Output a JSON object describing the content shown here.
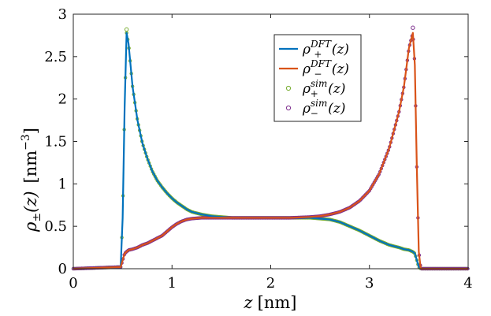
{
  "chart_data": {
    "type": "line",
    "title": "",
    "xlabel": {
      "symbol": "z",
      "unit": "[nm]"
    },
    "ylabel": {
      "symbol": "ρ",
      "sub": "±",
      "arg": "(z)",
      "unit": "[nm",
      "unit_exp": "−3",
      "unit_close": "]"
    },
    "xlim": [
      0,
      4
    ],
    "ylim": [
      0,
      3
    ],
    "xticks": [
      {
        "value": 0,
        "label": "0"
      },
      {
        "value": 1,
        "label": "1"
      },
      {
        "value": 2,
        "label": "2"
      },
      {
        "value": 3,
        "label": "3"
      },
      {
        "value": 4,
        "label": "4"
      }
    ],
    "yticks": [
      {
        "value": 0,
        "label": "0"
      },
      {
        "value": 0.5,
        "label": "0.5"
      },
      {
        "value": 1,
        "label": "1"
      },
      {
        "value": 1.5,
        "label": "1.5"
      },
      {
        "value": 2,
        "label": "2"
      },
      {
        "value": 2.5,
        "label": "2.5"
      },
      {
        "value": 3,
        "label": "3"
      }
    ],
    "grid": false,
    "legend_position": "top-right",
    "series": [
      {
        "id": "plus_dft",
        "kind": "line",
        "color": "#0072BD",
        "legend": {
          "base": "ρ",
          "sub": "+",
          "sup": "DFT",
          "arg": "(z)"
        },
        "x": [
          0,
          0.48,
          0.5,
          0.52,
          0.54,
          0.56,
          0.6,
          0.65,
          0.7,
          0.75,
          0.8,
          0.85,
          0.9,
          0.95,
          1.0,
          1.05,
          1.1,
          1.15,
          1.2,
          1.3,
          1.4,
          1.5,
          1.6,
          1.8,
          2.0,
          2.2,
          2.4,
          2.5,
          2.6,
          2.7,
          2.8,
          2.9,
          3.0,
          3.1,
          3.2,
          3.3,
          3.35,
          3.4,
          3.44,
          3.46,
          3.48,
          3.5,
          3.52,
          4.0
        ],
        "y": [
          0,
          0.02,
          0.6,
          1.9,
          2.78,
          2.65,
          2.15,
          1.75,
          1.48,
          1.3,
          1.15,
          1.04,
          0.96,
          0.89,
          0.83,
          0.78,
          0.74,
          0.7,
          0.67,
          0.64,
          0.62,
          0.61,
          0.6,
          0.6,
          0.6,
          0.6,
          0.6,
          0.59,
          0.58,
          0.55,
          0.5,
          0.45,
          0.39,
          0.33,
          0.28,
          0.25,
          0.23,
          0.22,
          0.2,
          0.18,
          0.1,
          0.02,
          0,
          0
        ]
      },
      {
        "id": "minus_dft",
        "kind": "line",
        "color": "#D95319",
        "legend": {
          "base": "ρ",
          "sub": "−",
          "sup": "DFT",
          "arg": "(z)"
        },
        "x": [
          0,
          0.48,
          0.5,
          0.52,
          0.54,
          0.56,
          0.6,
          0.65,
          0.7,
          0.75,
          0.8,
          0.85,
          0.9,
          0.95,
          1.0,
          1.05,
          1.1,
          1.15,
          1.2,
          1.3,
          1.4,
          1.5,
          1.6,
          1.8,
          2.0,
          2.2,
          2.4,
          2.5,
          2.6,
          2.7,
          2.8,
          2.9,
          3.0,
          3.1,
          3.2,
          3.3,
          3.35,
          3.4,
          3.44,
          3.46,
          3.48,
          3.5,
          3.52,
          4.0
        ],
        "y": [
          0,
          0.02,
          0.1,
          0.18,
          0.2,
          0.22,
          0.23,
          0.25,
          0.28,
          0.3,
          0.33,
          0.36,
          0.39,
          0.44,
          0.49,
          0.53,
          0.56,
          0.58,
          0.59,
          0.6,
          0.6,
          0.6,
          0.6,
          0.6,
          0.6,
          0.6,
          0.61,
          0.62,
          0.64,
          0.67,
          0.72,
          0.8,
          0.92,
          1.12,
          1.42,
          1.85,
          2.15,
          2.6,
          2.78,
          2.4,
          1.2,
          0.2,
          0,
          0
        ]
      },
      {
        "id": "plus_sim",
        "kind": "markers",
        "color": "#77AC30",
        "legend": {
          "base": "ρ",
          "sub": "+",
          "sup": "sim",
          "arg": "(z)"
        },
        "x": [
          0.54
        ],
        "y": [
          2.82
        ]
      },
      {
        "id": "minus_sim",
        "kind": "markers",
        "color": "#7E2F8E",
        "legend": {
          "base": "ρ",
          "sub": "−",
          "sup": "sim",
          "arg": "(z)"
        },
        "x": [
          3.44
        ],
        "y": [
          2.84
        ]
      }
    ]
  }
}
